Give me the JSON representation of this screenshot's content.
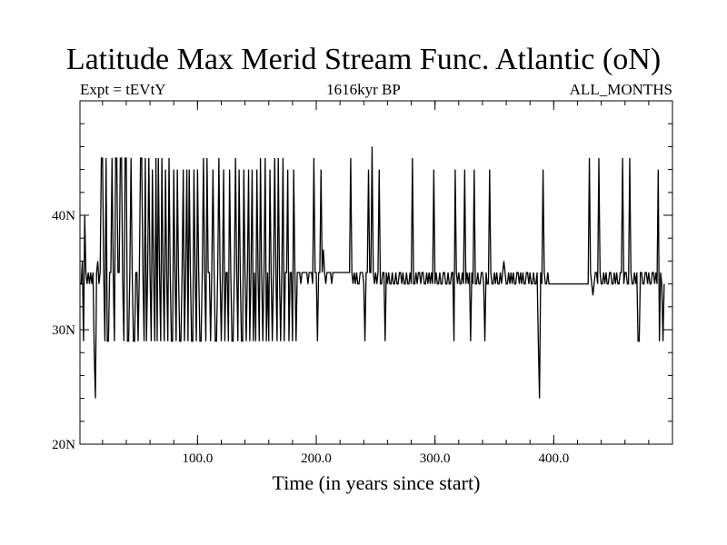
{
  "chart_data": {
    "type": "line",
    "title": "Latitude Max Merid Stream Func. Atlantic (oN)",
    "subtitle_left": "Expt = tEVtY",
    "subtitle_center": "1616kyr BP",
    "subtitle_right": "ALL_MONTHS",
    "xlabel": "Time (in years since start)",
    "ylabel": "",
    "xlim": [
      1,
      500
    ],
    "ylim": [
      20,
      50
    ],
    "x_ticks": [
      {
        "value": 100,
        "label": "100.0"
      },
      {
        "value": 200,
        "label": "200.0"
      },
      {
        "value": 300,
        "label": "300.0"
      },
      {
        "value": 400,
        "label": "400.0"
      }
    ],
    "y_ticks": [
      {
        "value": 20,
        "label": "20N"
      },
      {
        "value": 30,
        "label": "30N"
      },
      {
        "value": 40,
        "label": "40N"
      }
    ],
    "grid": false,
    "series": [
      {
        "x_start": 1,
        "x_step": 1,
        "color": "#000000",
        "values": [
          34,
          34,
          36,
          29,
          40,
          35,
          34,
          35,
          34,
          35,
          34,
          35,
          28,
          24,
          35,
          36,
          34,
          35,
          45,
          45,
          35,
          29,
          45,
          29,
          29,
          35,
          35,
          45,
          35,
          29,
          45,
          45,
          35,
          35,
          45,
          45,
          34,
          29,
          45,
          45,
          29,
          29,
          35,
          45,
          35,
          29,
          29,
          35,
          35,
          29,
          35,
          45,
          45,
          35,
          29,
          45,
          29,
          35,
          45,
          35,
          29,
          44,
          35,
          29,
          45,
          29,
          45,
          35,
          29,
          45,
          35,
          29,
          44,
          35,
          29,
          45,
          35,
          29,
          29,
          44,
          35,
          29,
          44,
          35,
          29,
          29,
          35,
          44,
          29,
          35,
          44,
          29,
          44,
          35,
          29,
          29,
          44,
          35,
          29,
          44,
          35,
          29,
          29,
          35,
          45,
          35,
          29,
          45,
          35,
          35,
          29,
          35,
          44,
          35,
          29,
          29,
          35,
          45,
          35,
          29,
          35,
          44,
          29,
          35,
          35,
          29,
          44,
          35,
          29,
          29,
          35,
          45,
          35,
          29,
          44,
          35,
          29,
          29,
          44,
          35,
          29,
          35,
          44,
          29,
          35,
          44,
          29,
          35,
          29,
          44,
          35,
          29,
          45,
          35,
          29,
          35,
          45,
          29,
          35,
          29,
          44,
          35,
          29,
          35,
          45,
          35,
          29,
          45,
          35,
          29,
          35,
          45,
          29,
          35,
          35,
          44,
          29,
          35,
          35,
          29,
          44,
          35,
          29,
          35,
          35,
          35,
          34,
          35,
          35,
          35,
          35,
          35,
          34,
          35,
          35,
          35,
          34,
          45,
          35,
          35,
          29,
          35,
          35,
          44,
          35,
          37,
          35,
          34,
          35,
          35,
          35,
          35,
          34,
          35,
          35,
          35,
          35,
          35,
          35,
          35,
          35,
          35,
          35,
          35,
          35,
          35,
          35,
          35,
          45,
          35,
          34,
          35,
          34,
          35,
          34,
          34,
          35,
          35,
          35,
          34,
          29,
          35,
          35,
          44,
          35,
          35,
          46,
          35,
          34,
          35,
          34,
          35,
          44,
          34,
          34,
          35,
          35,
          29,
          35,
          34,
          35,
          34,
          34,
          35,
          34,
          34,
          35,
          34,
          34,
          35,
          35,
          34,
          35,
          34,
          34,
          35,
          34,
          34,
          35,
          34,
          45,
          34,
          34,
          35,
          34,
          35,
          35,
          34,
          35,
          35,
          34,
          34,
          35,
          34,
          35,
          34,
          35,
          34,
          44,
          34,
          35,
          34,
          34,
          35,
          34,
          34,
          35,
          35,
          34,
          34,
          35,
          34,
          34,
          35,
          35,
          29,
          44,
          35,
          34,
          35,
          34,
          34,
          35,
          34,
          44,
          34,
          35,
          34,
          35,
          29,
          35,
          34,
          44,
          34,
          34,
          35,
          34,
          34,
          35,
          35,
          34,
          29,
          35,
          34,
          34,
          44,
          35,
          34,
          34,
          35,
          34,
          35,
          34,
          34,
          35,
          34,
          35,
          36,
          35,
          34,
          34,
          35,
          34,
          35,
          34,
          35,
          34,
          34,
          35,
          35,
          34,
          35,
          34,
          35,
          34,
          34,
          35,
          35,
          34,
          35,
          34,
          34,
          35,
          34,
          34,
          35,
          29,
          24,
          35,
          34,
          44,
          35,
          34,
          34,
          35,
          34,
          34,
          34,
          34,
          34,
          34,
          34,
          34,
          34,
          34,
          34,
          34,
          34,
          34,
          34,
          34,
          34,
          34,
          34,
          34,
          34,
          34,
          34,
          34,
          34,
          34,
          34,
          34,
          34,
          34,
          34,
          34,
          34,
          34,
          45,
          35,
          34,
          33,
          34,
          35,
          35,
          34,
          45,
          35,
          34,
          34,
          35,
          34,
          35,
          34,
          34,
          35,
          35,
          34,
          34,
          35,
          34,
          35,
          34,
          34,
          35,
          35,
          45,
          34,
          35,
          35,
          34,
          34,
          45,
          35,
          34,
          34,
          35,
          34,
          35,
          29,
          29,
          35,
          35,
          34,
          34,
          35,
          35,
          34,
          35,
          34,
          34,
          35,
          35,
          34,
          35,
          34,
          44,
          29,
          35,
          34,
          29,
          34
        ]
      }
    ]
  }
}
